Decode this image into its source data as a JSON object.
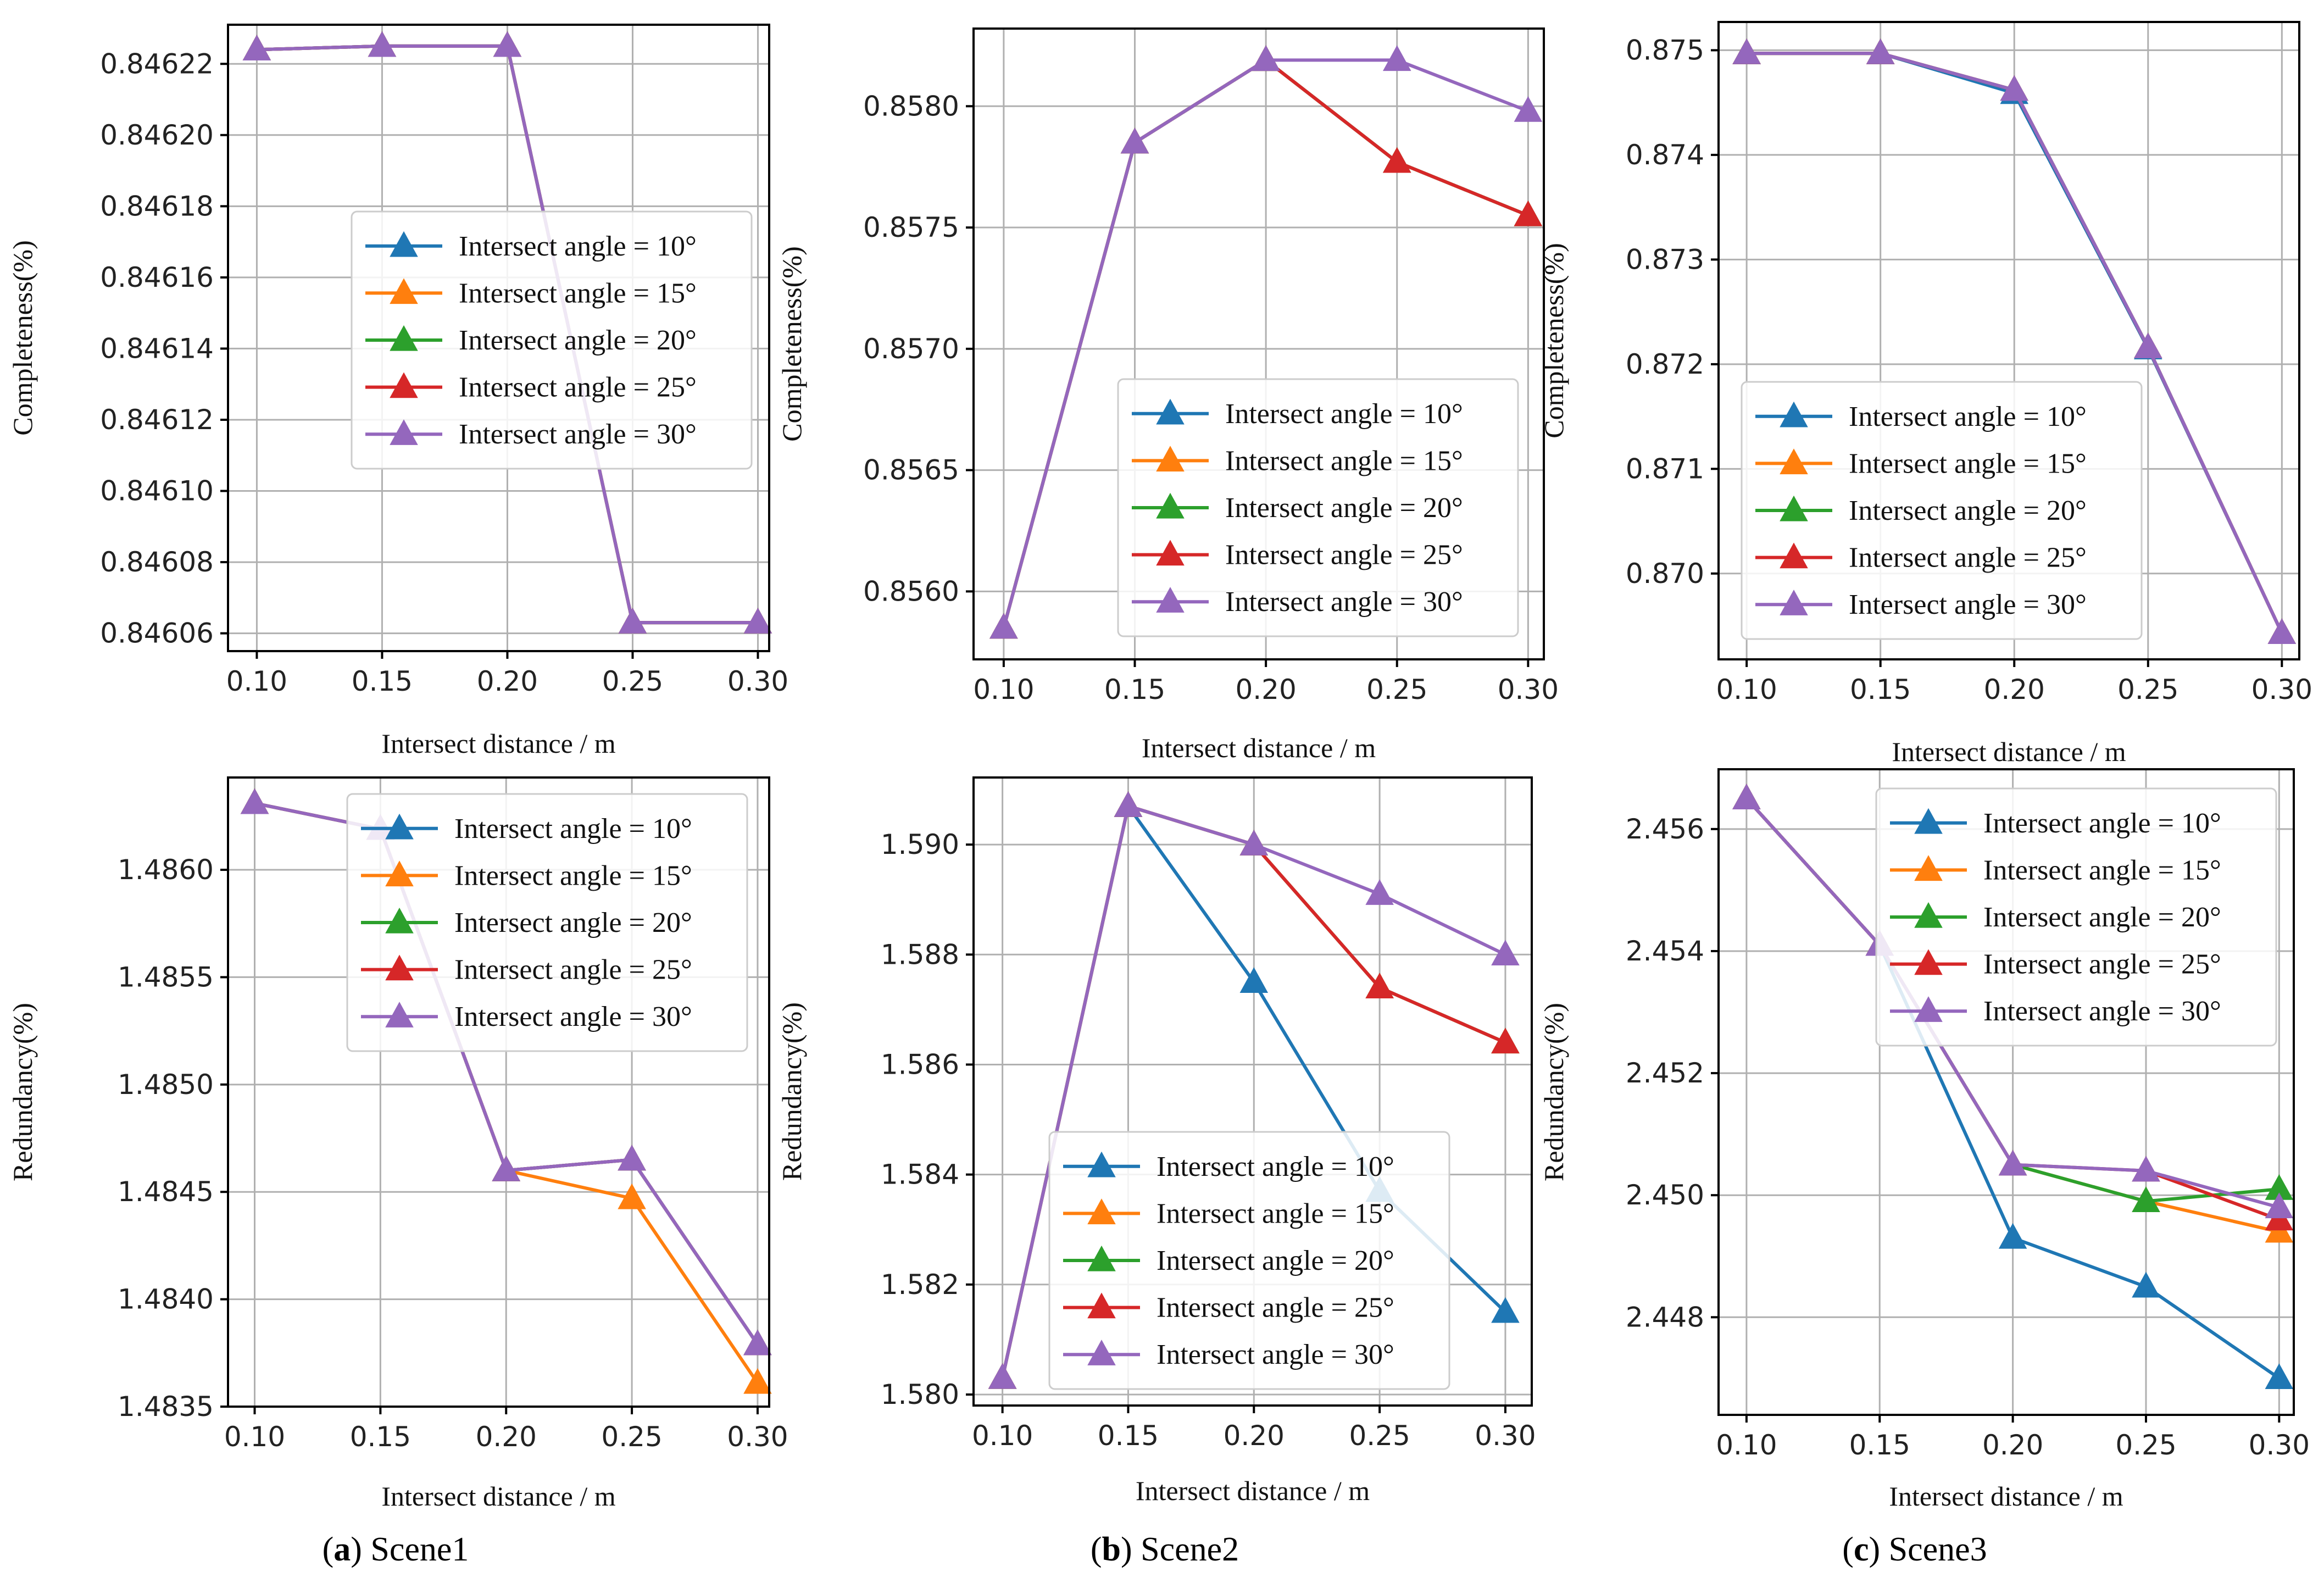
{
  "chart_data": [
    {
      "id": "s1-completeness",
      "type": "line",
      "xlabel": "Intersect distance / m",
      "ylabel": "Completeness(%)",
      "x": [
        0.1,
        0.15,
        0.2,
        0.25,
        0.3
      ],
      "xticks": [
        "0.10",
        "0.15",
        "0.20",
        "0.25",
        "0.30"
      ],
      "xlim": [
        0.0885,
        0.3045
      ],
      "ylim": [
        0.846055,
        0.846231
      ],
      "yticks": [
        "0.84606",
        "0.84608",
        "0.84610",
        "0.84612",
        "0.84614",
        "0.84616",
        "0.84618",
        "0.84620",
        "0.84622"
      ],
      "ytick_values": [
        0.84606,
        0.84608,
        0.8461,
        0.84612,
        0.84614,
        0.84616,
        0.84618,
        0.8462,
        0.84622
      ],
      "legend_position": "center-right",
      "series": [
        {
          "name": "Intersect angle = 10°",
          "color": "#1f77b4",
          "values": [
            0.846224,
            0.846225,
            0.846225,
            0.846063,
            0.846063
          ]
        },
        {
          "name": "Intersect angle = 15°",
          "color": "#ff7f0e",
          "values": [
            0.846224,
            0.846225,
            0.846225,
            0.846063,
            0.846063
          ]
        },
        {
          "name": "Intersect angle = 20°",
          "color": "#2ca02c",
          "values": [
            0.846224,
            0.846225,
            0.846225,
            0.846063,
            0.846063
          ]
        },
        {
          "name": "Intersect angle = 25°",
          "color": "#d62728",
          "values": [
            0.846224,
            0.846225,
            0.846225,
            0.846063,
            0.846063
          ]
        },
        {
          "name": "Intersect angle = 30°",
          "color": "#9467bd",
          "values": [
            0.846224,
            0.846225,
            0.846225,
            0.846063,
            0.846063
          ]
        }
      ]
    },
    {
      "id": "s2-completeness",
      "type": "line",
      "xlabel": "Intersect distance / m",
      "ylabel": "Completeness(%)",
      "x": [
        0.1,
        0.15,
        0.2,
        0.25,
        0.3
      ],
      "xticks": [
        "0.10",
        "0.15",
        "0.20",
        "0.25",
        "0.30"
      ],
      "xlim": [
        0.0885,
        0.306
      ],
      "ylim": [
        0.85572,
        0.85832
      ],
      "yticks": [
        "0.8560",
        "0.8565",
        "0.8570",
        "0.8575",
        "0.8580"
      ],
      "ytick_values": [
        0.856,
        0.8565,
        0.857,
        0.8575,
        0.858
      ],
      "legend_position": "lower-right",
      "series": [
        {
          "name": "Intersect angle = 10°",
          "color": "#1f77b4",
          "values": [
            0.85585,
            0.85785,
            0.85819,
            0.85777,
            0.85755
          ]
        },
        {
          "name": "Intersect angle = 15°",
          "color": "#ff7f0e",
          "values": [
            0.85585,
            0.85785,
            0.85819,
            0.85777,
            0.85755
          ]
        },
        {
          "name": "Intersect angle = 20°",
          "color": "#2ca02c",
          "values": [
            0.85585,
            0.85785,
            0.85819,
            0.85777,
            0.85755
          ]
        },
        {
          "name": "Intersect angle = 25°",
          "color": "#d62728",
          "values": [
            0.85585,
            0.85785,
            0.85819,
            0.85777,
            0.85755
          ]
        },
        {
          "name": "Intersect angle = 30°",
          "color": "#9467bd",
          "values": [
            0.85585,
            0.85785,
            0.85819,
            0.85819,
            0.85798
          ]
        }
      ]
    },
    {
      "id": "s3-completeness",
      "type": "line",
      "xlabel": "Intersect distance / m",
      "ylabel": "Completeness(%)",
      "x": [
        0.1,
        0.15,
        0.2,
        0.25,
        0.3
      ],
      "xticks": [
        "0.10",
        "0.15",
        "0.20",
        "0.25",
        "0.30"
      ],
      "xlim": [
        0.0895,
        0.3065
      ],
      "ylim": [
        0.86918,
        0.87527
      ],
      "yticks": [
        "0.870",
        "0.871",
        "0.872",
        "0.873",
        "0.874",
        "0.875"
      ],
      "ytick_values": [
        0.87,
        0.871,
        0.872,
        0.873,
        0.874,
        0.875
      ],
      "legend_position": "lower-right",
      "series": [
        {
          "name": "Intersect angle = 10°",
          "color": "#1f77b4",
          "values": [
            0.87497,
            0.87497,
            0.87459,
            0.87215,
            0.86943
          ]
        },
        {
          "name": "Intersect angle = 15°",
          "color": "#ff7f0e",
          "values": [
            0.87497,
            0.87497,
            0.87462,
            0.87216,
            0.86943
          ]
        },
        {
          "name": "Intersect angle = 20°",
          "color": "#2ca02c",
          "values": [
            0.87497,
            0.87497,
            0.87462,
            0.87216,
            0.86943
          ]
        },
        {
          "name": "Intersect angle = 25°",
          "color": "#d62728",
          "values": [
            0.87497,
            0.87497,
            0.87462,
            0.87216,
            0.86943
          ]
        },
        {
          "name": "Intersect angle = 30°",
          "color": "#9467bd",
          "values": [
            0.87497,
            0.87497,
            0.87462,
            0.87216,
            0.86943
          ]
        }
      ]
    },
    {
      "id": "s1-redundancy",
      "type": "line",
      "xlabel": "Intersect distance / m",
      "ylabel": "Redundancy(%)",
      "x": [
        0.1,
        0.15,
        0.2,
        0.25,
        0.3
      ],
      "xticks": [
        "0.10",
        "0.15",
        "0.20",
        "0.25",
        "0.30"
      ],
      "xlim": [
        0.0894,
        0.3046
      ],
      "ylim": [
        1.4835,
        1.48643
      ],
      "yticks": [
        "1.4835",
        "1.4840",
        "1.4845",
        "1.4850",
        "1.4855",
        "1.4860"
      ],
      "ytick_values": [
        1.4835,
        1.484,
        1.4845,
        1.485,
        1.4855,
        1.486
      ],
      "legend_position": "upper-right",
      "series": [
        {
          "name": "Intersect angle = 10°",
          "color": "#1f77b4",
          "values": [
            1.48631,
            1.48619,
            1.4846,
            1.48465,
            1.48379
          ]
        },
        {
          "name": "Intersect angle = 15°",
          "color": "#ff7f0e",
          "values": [
            1.48631,
            1.48619,
            1.4846,
            1.48447,
            1.48361
          ]
        },
        {
          "name": "Intersect angle = 20°",
          "color": "#2ca02c",
          "values": [
            1.48631,
            1.48619,
            1.4846,
            1.48465,
            1.48379
          ]
        },
        {
          "name": "Intersect angle = 25°",
          "color": "#d62728",
          "values": [
            1.48631,
            1.48619,
            1.4846,
            1.48465,
            1.48379
          ]
        },
        {
          "name": "Intersect angle = 30°",
          "color": "#9467bd",
          "values": [
            1.48631,
            1.48619,
            1.4846,
            1.48465,
            1.48379
          ]
        }
      ]
    },
    {
      "id": "s2-redundancy",
      "type": "line",
      "xlabel": "Intersect distance / m",
      "ylabel": "Redundancy(%)",
      "x": [
        0.1,
        0.15,
        0.2,
        0.25,
        0.3
      ],
      "xticks": [
        "0.10",
        "0.15",
        "0.20",
        "0.25",
        "0.30"
      ],
      "xlim": [
        0.0885,
        0.3105
      ],
      "ylim": [
        1.5798,
        1.59122
      ],
      "yticks": [
        "1.580",
        "1.582",
        "1.584",
        "1.586",
        "1.588",
        "1.590"
      ],
      "ytick_values": [
        1.58,
        1.582,
        1.584,
        1.586,
        1.588,
        1.59
      ],
      "legend_position": "lower-right",
      "series": [
        {
          "name": "Intersect angle = 10°",
          "color": "#1f77b4",
          "values": [
            1.5803,
            1.5907,
            1.5875,
            1.5837,
            1.5815
          ]
        },
        {
          "name": "Intersect angle = 15°",
          "color": "#ff7f0e",
          "values": [
            1.5803,
            1.5907,
            1.59,
            1.5874,
            1.5864
          ]
        },
        {
          "name": "Intersect angle = 20°",
          "color": "#2ca02c",
          "values": [
            1.5803,
            1.5907,
            1.59,
            1.5874,
            1.5864
          ]
        },
        {
          "name": "Intersect angle = 25°",
          "color": "#d62728",
          "values": [
            1.5803,
            1.5907,
            1.59,
            1.5874,
            1.5864
          ]
        },
        {
          "name": "Intersect angle = 30°",
          "color": "#9467bd",
          "values": [
            1.5803,
            1.5907,
            1.59,
            1.5891,
            1.588
          ]
        }
      ]
    },
    {
      "id": "s3-redundancy",
      "type": "line",
      "xlabel": "Intersect distance / m",
      "ylabel": "Redundancy(%)",
      "x": [
        0.1,
        0.15,
        0.2,
        0.25,
        0.3
      ],
      "xticks": [
        "0.10",
        "0.15",
        "0.20",
        "0.25",
        "0.30"
      ],
      "xlim": [
        0.0895,
        0.3055
      ],
      "ylim": [
        2.4464,
        2.45698
      ],
      "yticks": [
        "2.448",
        "2.450",
        "2.452",
        "2.454",
        "2.456"
      ],
      "ytick_values": [
        2.448,
        2.45,
        2.452,
        2.454,
        2.456
      ],
      "legend_position": "upper-right",
      "series": [
        {
          "name": "Intersect angle = 10°",
          "color": "#1f77b4",
          "values": [
            2.4565,
            2.4541,
            2.4493,
            2.4485,
            2.447
          ]
        },
        {
          "name": "Intersect angle = 15°",
          "color": "#ff7f0e",
          "values": [
            2.4565,
            2.4541,
            2.4505,
            2.4499,
            2.4494
          ]
        },
        {
          "name": "Intersect angle = 20°",
          "color": "#2ca02c",
          "values": [
            2.4565,
            2.4541,
            2.4505,
            2.4499,
            2.4501
          ]
        },
        {
          "name": "Intersect angle = 25°",
          "color": "#d62728",
          "values": [
            2.4565,
            2.4541,
            2.4505,
            2.4504,
            2.4496
          ]
        },
        {
          "name": "Intersect angle = 30°",
          "color": "#9467bd",
          "values": [
            2.4565,
            2.4541,
            2.4505,
            2.4504,
            2.4498
          ]
        }
      ]
    }
  ],
  "captions": [
    {
      "letter": "a",
      "text": "Scene1"
    },
    {
      "letter": "b",
      "text": "Scene2"
    },
    {
      "letter": "c",
      "text": "Scene3"
    }
  ]
}
